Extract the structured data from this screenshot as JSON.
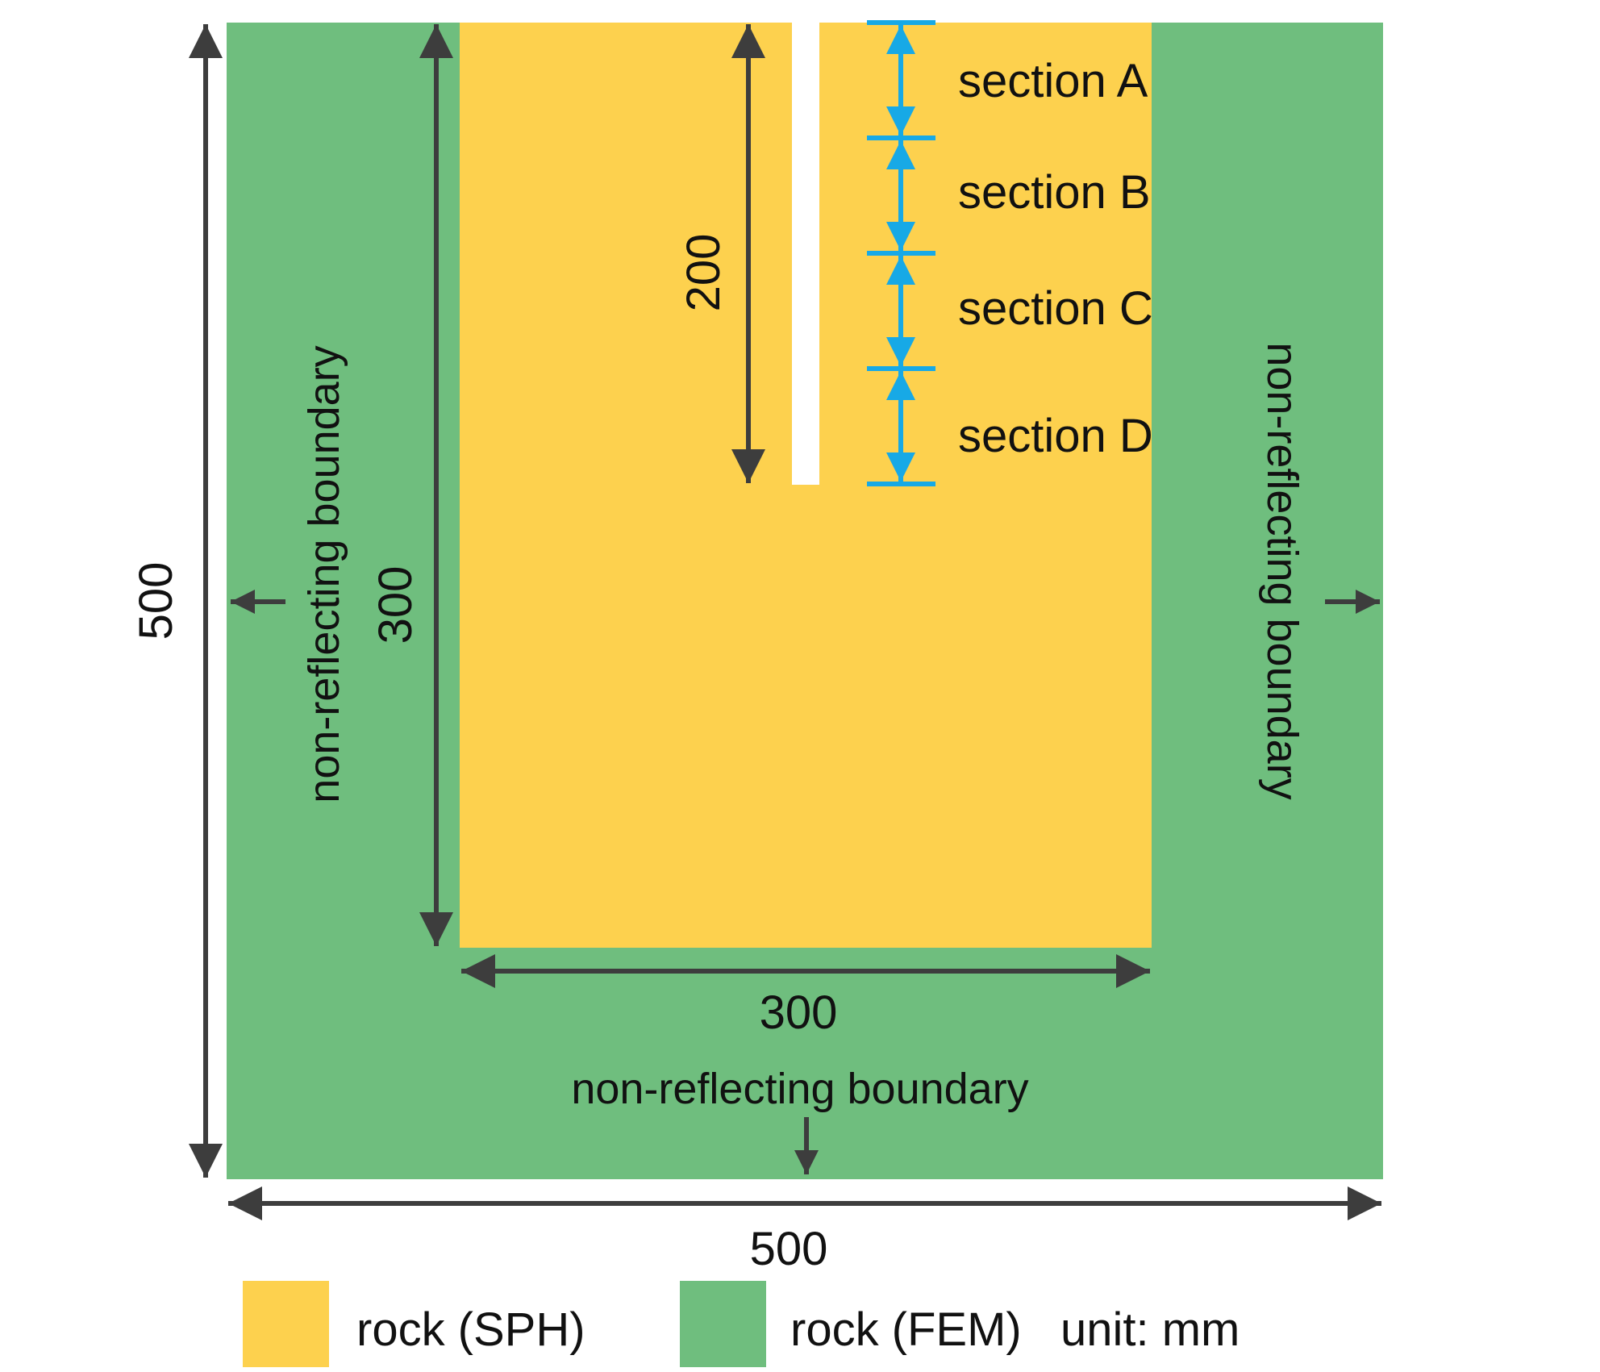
{
  "colors": {
    "sph": "#FDD14E",
    "fem": "#6FBE7E",
    "crack": "#FFFFFF",
    "dimension_arrow": "#3D3D3D",
    "section_marker": "#17A9E6",
    "text": "#111111"
  },
  "dimensions": {
    "outer_width": "500",
    "outer_height": "500",
    "inner_width": "300",
    "inner_height": "300",
    "crack_length": "200"
  },
  "sections": [
    "section A",
    "section B",
    "section C",
    "section D"
  ],
  "boundaries": {
    "left": "non-reflecting boundary",
    "right": "non-reflecting boundary",
    "bottom": "non-reflecting boundary"
  },
  "legend": {
    "sph_label": "rock (SPH)",
    "fem_label": "rock (FEM)",
    "unit_label": "unit: mm"
  }
}
